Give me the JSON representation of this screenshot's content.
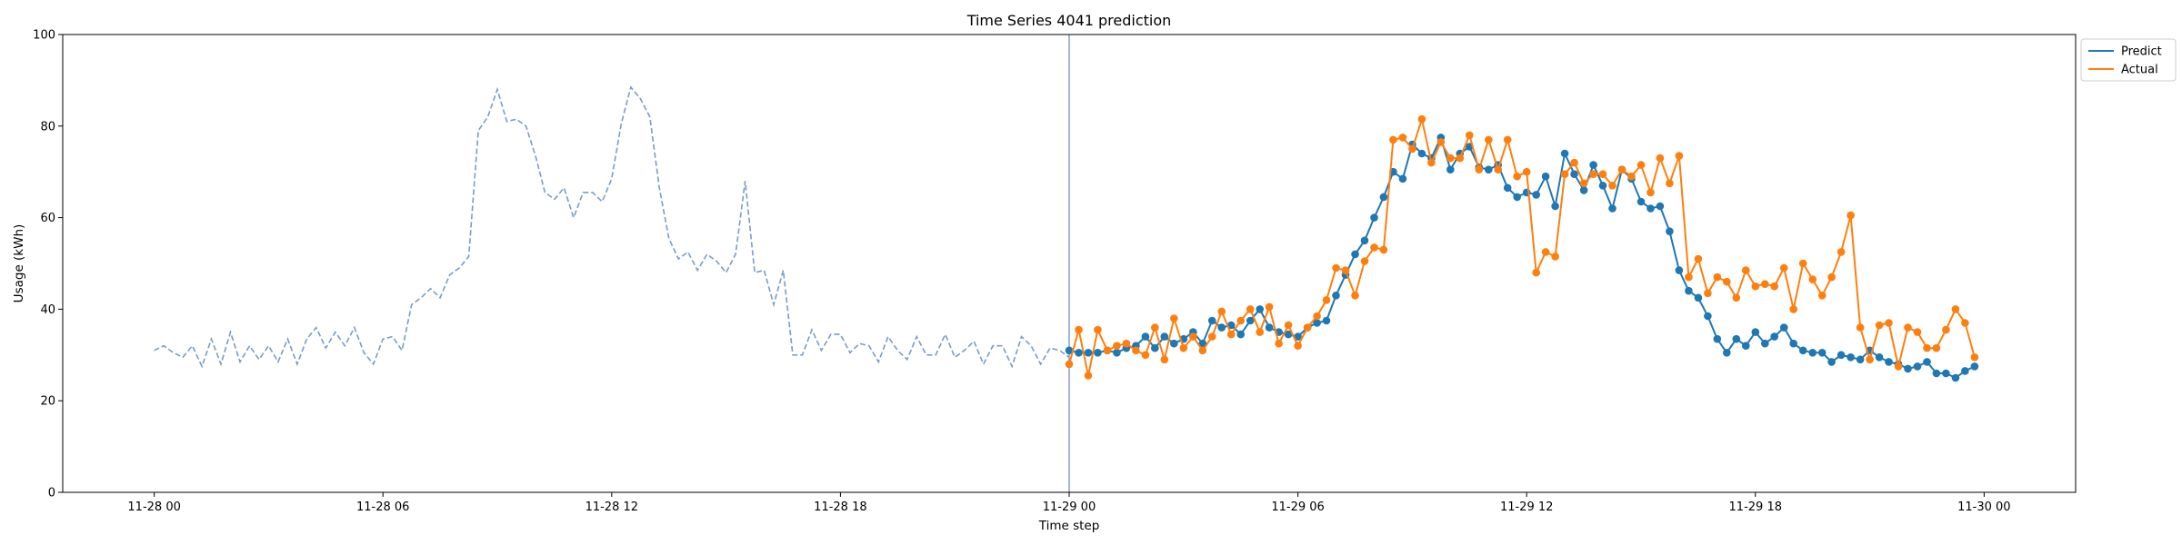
{
  "chart_data": {
    "type": "line",
    "title": "Time Series 4041 prediction",
    "xlabel": "Time step",
    "ylabel": "Usage (kWh)",
    "ylim": [
      0,
      100
    ],
    "yticks": [
      0,
      20,
      40,
      60,
      80,
      100
    ],
    "xticks": [
      "11-28 00",
      "11-28 06",
      "11-28 12",
      "11-28 18",
      "11-29 00",
      "11-29 06",
      "11-29 12",
      "11-29 18",
      "11-30 00"
    ],
    "x_unit": "hours since 11-28 00",
    "x_step_minutes": 15,
    "xlim_hours": [
      -2.4,
      50.4
    ],
    "vertical_line_x": "11-29 00",
    "grid": false,
    "legend_position": "upper-right-outside",
    "history": {
      "style": "dashed",
      "color": "#7a9cc6",
      "x_start_hours": 0,
      "values": [
        31,
        32,
        30.5,
        29.5,
        32,
        27.5,
        33.5,
        28,
        35,
        28.5,
        32,
        29,
        32,
        28.5,
        33.5,
        28,
        33.5,
        36,
        31.5,
        35,
        32,
        36,
        30.5,
        28,
        33.5,
        34,
        31,
        41,
        42.5,
        44.5,
        42.5,
        47.5,
        49,
        51.5,
        79,
        82,
        88,
        81,
        81.5,
        80,
        73.5,
        65.5,
        64,
        66.5,
        60,
        65.5,
        65.5,
        63.5,
        68.5,
        80.5,
        88.5,
        86,
        82,
        66.5,
        55.5,
        51,
        52.5,
        48.5,
        52,
        50.5,
        48,
        52,
        68,
        48,
        48.5,
        41,
        48.5,
        30,
        30,
        35.5,
        31,
        34.5,
        34.5,
        30.5,
        32.5,
        32,
        28.5,
        34,
        31,
        29,
        34,
        30,
        30,
        34.5,
        29.5,
        31,
        33,
        28,
        32,
        32,
        27.5,
        34,
        32,
        28,
        31.5,
        31,
        29.5
      ]
    },
    "series": [
      {
        "name": "Predict",
        "color": "#1f77b4",
        "x_start_hours": 24,
        "values": [
          31,
          30.5,
          30.5,
          30.5,
          31,
          30.5,
          31.5,
          32,
          34,
          31.5,
          34,
          32.5,
          33.5,
          35,
          32.5,
          37.5,
          36,
          36.5,
          34.5,
          37.5,
          40,
          36,
          35,
          34.5,
          34,
          36,
          37,
          37.5,
          43,
          47.5,
          52,
          55,
          60,
          64.5,
          70,
          68.5,
          76,
          74,
          73,
          77.5,
          70.5,
          74,
          75.5,
          71,
          70.5,
          71.5,
          66.5,
          64.5,
          65.5,
          65,
          69,
          62.5,
          74,
          69.5,
          66,
          71.5,
          67,
          62,
          70.5,
          68.5,
          63.5,
          62,
          62.5,
          57,
          48.5,
          44,
          42.5,
          38.5,
          33.5,
          30.5,
          33.5,
          32,
          35,
          32.5,
          34,
          36,
          32.5,
          31,
          30.5,
          30.5,
          28.5,
          30,
          29.5,
          29,
          31,
          29.5,
          28.5,
          28,
          27,
          27.5,
          28.5,
          26,
          26,
          25,
          26.5,
          27.5
        ]
      },
      {
        "name": "Actual",
        "color": "#ff7f0e",
        "x_start_hours": 24,
        "values": [
          28,
          35.5,
          25.5,
          35.5,
          31,
          32,
          32.5,
          31,
          30,
          36,
          29,
          38,
          31.5,
          34,
          31,
          34,
          39.5,
          34.5,
          37.5,
          40,
          35,
          40.5,
          32.5,
          36.5,
          32,
          36,
          38.5,
          42,
          49,
          48.5,
          43,
          50.5,
          53.5,
          53,
          77,
          77.5,
          75,
          81.5,
          72,
          76.5,
          73,
          73,
          78,
          70.5,
          77,
          70.5,
          77,
          69,
          70,
          48,
          52.5,
          51.5,
          69.5,
          72,
          67.5,
          69.5,
          69.5,
          67,
          70.5,
          69,
          71.5,
          65.5,
          73,
          67.5,
          73.5,
          47,
          51,
          43.5,
          47,
          46,
          42.5,
          48.5,
          45,
          45.5,
          45,
          49,
          40,
          50,
          46.5,
          43,
          47,
          52.5,
          60.5,
          36,
          29,
          36.5,
          37,
          27.5,
          36,
          35,
          31.5,
          31.5,
          35.5,
          40,
          37,
          29.5
        ]
      }
    ]
  }
}
